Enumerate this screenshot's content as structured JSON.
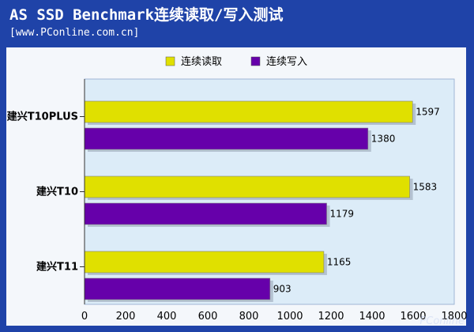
{
  "header": {
    "title": "AS SSD Benchmark连续读取/写入测试",
    "source": "[www.PConline.com.cn]"
  },
  "watermark": "PConline",
  "colors": {
    "frame_bg": "#1f43a8",
    "plot_bg": "#dcecf8",
    "panel_bg": "#f4f7fb",
    "read": "#e0e000",
    "write": "#6600aa"
  },
  "chart_data": {
    "type": "bar",
    "orientation": "horizontal",
    "title": "AS SSD Benchmark连续读取/写入测试",
    "categories": [
      "建兴T10PLUS",
      "建兴T10",
      "建兴T11"
    ],
    "series": [
      {
        "name": "连续读取",
        "color": "#e0e000",
        "values": [
          1597,
          1583,
          1165
        ]
      },
      {
        "name": "连续写入",
        "color": "#6600aa",
        "values": [
          1380,
          1179,
          903
        ]
      }
    ],
    "xlabel": "",
    "ylabel": "",
    "xlim": [
      0,
      1800
    ],
    "xticks": [
      0,
      200,
      400,
      600,
      800,
      1000,
      1200,
      1400,
      1600,
      1800
    ],
    "legend": "top-center",
    "grid": false
  }
}
